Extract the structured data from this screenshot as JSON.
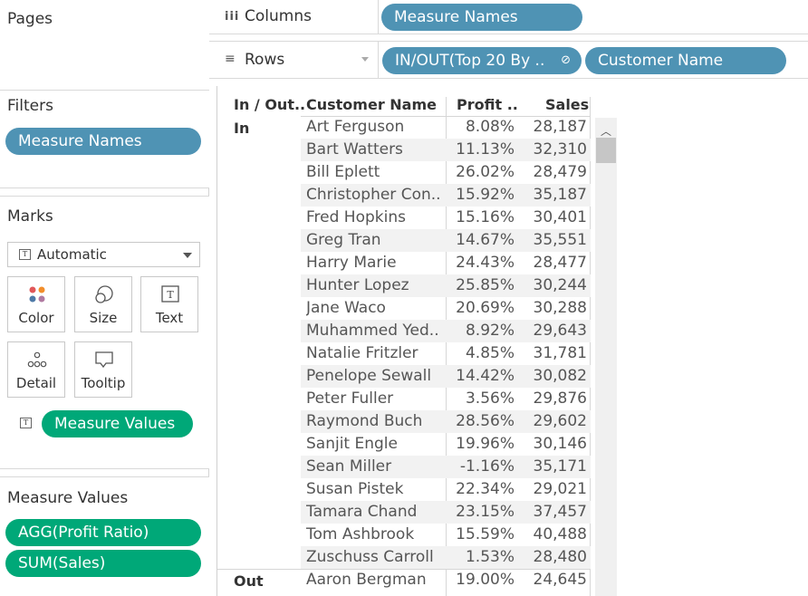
{
  "left_panel": {
    "pages": {
      "title": "Pages"
    },
    "filters": {
      "title": "Filters",
      "pills": [
        "Measure Names"
      ]
    },
    "marks": {
      "title": "Marks",
      "mark_type": "Automatic",
      "buttons": [
        "Color",
        "Size",
        "Text",
        "Detail",
        "Tooltip"
      ],
      "text_pill": "Measure Values"
    },
    "measure_values": {
      "title": "Measure Values",
      "pills": [
        "AGG(Profit Ratio)",
        "SUM(Sales)"
      ]
    }
  },
  "shelves": {
    "columns": {
      "label": "Columns",
      "icon": "columns-icon",
      "pills": [
        "Measure Names"
      ]
    },
    "rows": {
      "label": "Rows",
      "icon": "rows-icon",
      "pills": [
        "IN/OUT(Top 20 By ..",
        "Customer Name"
      ]
    }
  },
  "table": {
    "headers": [
      "In / Out..",
      "Customer Name",
      "Profit ..",
      "Sales"
    ],
    "group_in": "In",
    "group_out": "Out",
    "rows": [
      {
        "name": "Art Ferguson",
        "profit": "8.08%",
        "sales": "28,187"
      },
      {
        "name": "Bart Watters",
        "profit": "11.13%",
        "sales": "32,310"
      },
      {
        "name": "Bill Eplett",
        "profit": "26.02%",
        "sales": "28,479"
      },
      {
        "name": "Christopher Con..",
        "profit": "15.92%",
        "sales": "35,187"
      },
      {
        "name": "Fred Hopkins",
        "profit": "15.16%",
        "sales": "30,401"
      },
      {
        "name": "Greg Tran",
        "profit": "14.67%",
        "sales": "35,551"
      },
      {
        "name": "Harry Marie",
        "profit": "24.43%",
        "sales": "28,477"
      },
      {
        "name": "Hunter Lopez",
        "profit": "25.85%",
        "sales": "30,244"
      },
      {
        "name": "Jane Waco",
        "profit": "20.69%",
        "sales": "30,288"
      },
      {
        "name": "Muhammed Yed..",
        "profit": "8.92%",
        "sales": "29,643"
      },
      {
        "name": "Natalie Fritzler",
        "profit": "4.85%",
        "sales": "31,781"
      },
      {
        "name": "Penelope Sewall",
        "profit": "14.42%",
        "sales": "30,082"
      },
      {
        "name": "Peter Fuller",
        "profit": "3.56%",
        "sales": "29,876"
      },
      {
        "name": "Raymond Buch",
        "profit": "28.56%",
        "sales": "29,602"
      },
      {
        "name": "Sanjit Engle",
        "profit": "19.96%",
        "sales": "30,146"
      },
      {
        "name": "Sean Miller",
        "profit": "-1.16%",
        "sales": "35,171"
      },
      {
        "name": "Susan Pistek",
        "profit": "22.34%",
        "sales": "29,021"
      },
      {
        "name": "Tamara Chand",
        "profit": "23.15%",
        "sales": "37,457"
      },
      {
        "name": "Tom Ashbrook",
        "profit": "15.59%",
        "sales": "40,488"
      },
      {
        "name": "Zuschuss Carroll",
        "profit": "1.53%",
        "sales": "28,480"
      },
      {
        "name": "Aaron Bergman",
        "profit": "19.00%",
        "sales": "24,645"
      }
    ]
  }
}
